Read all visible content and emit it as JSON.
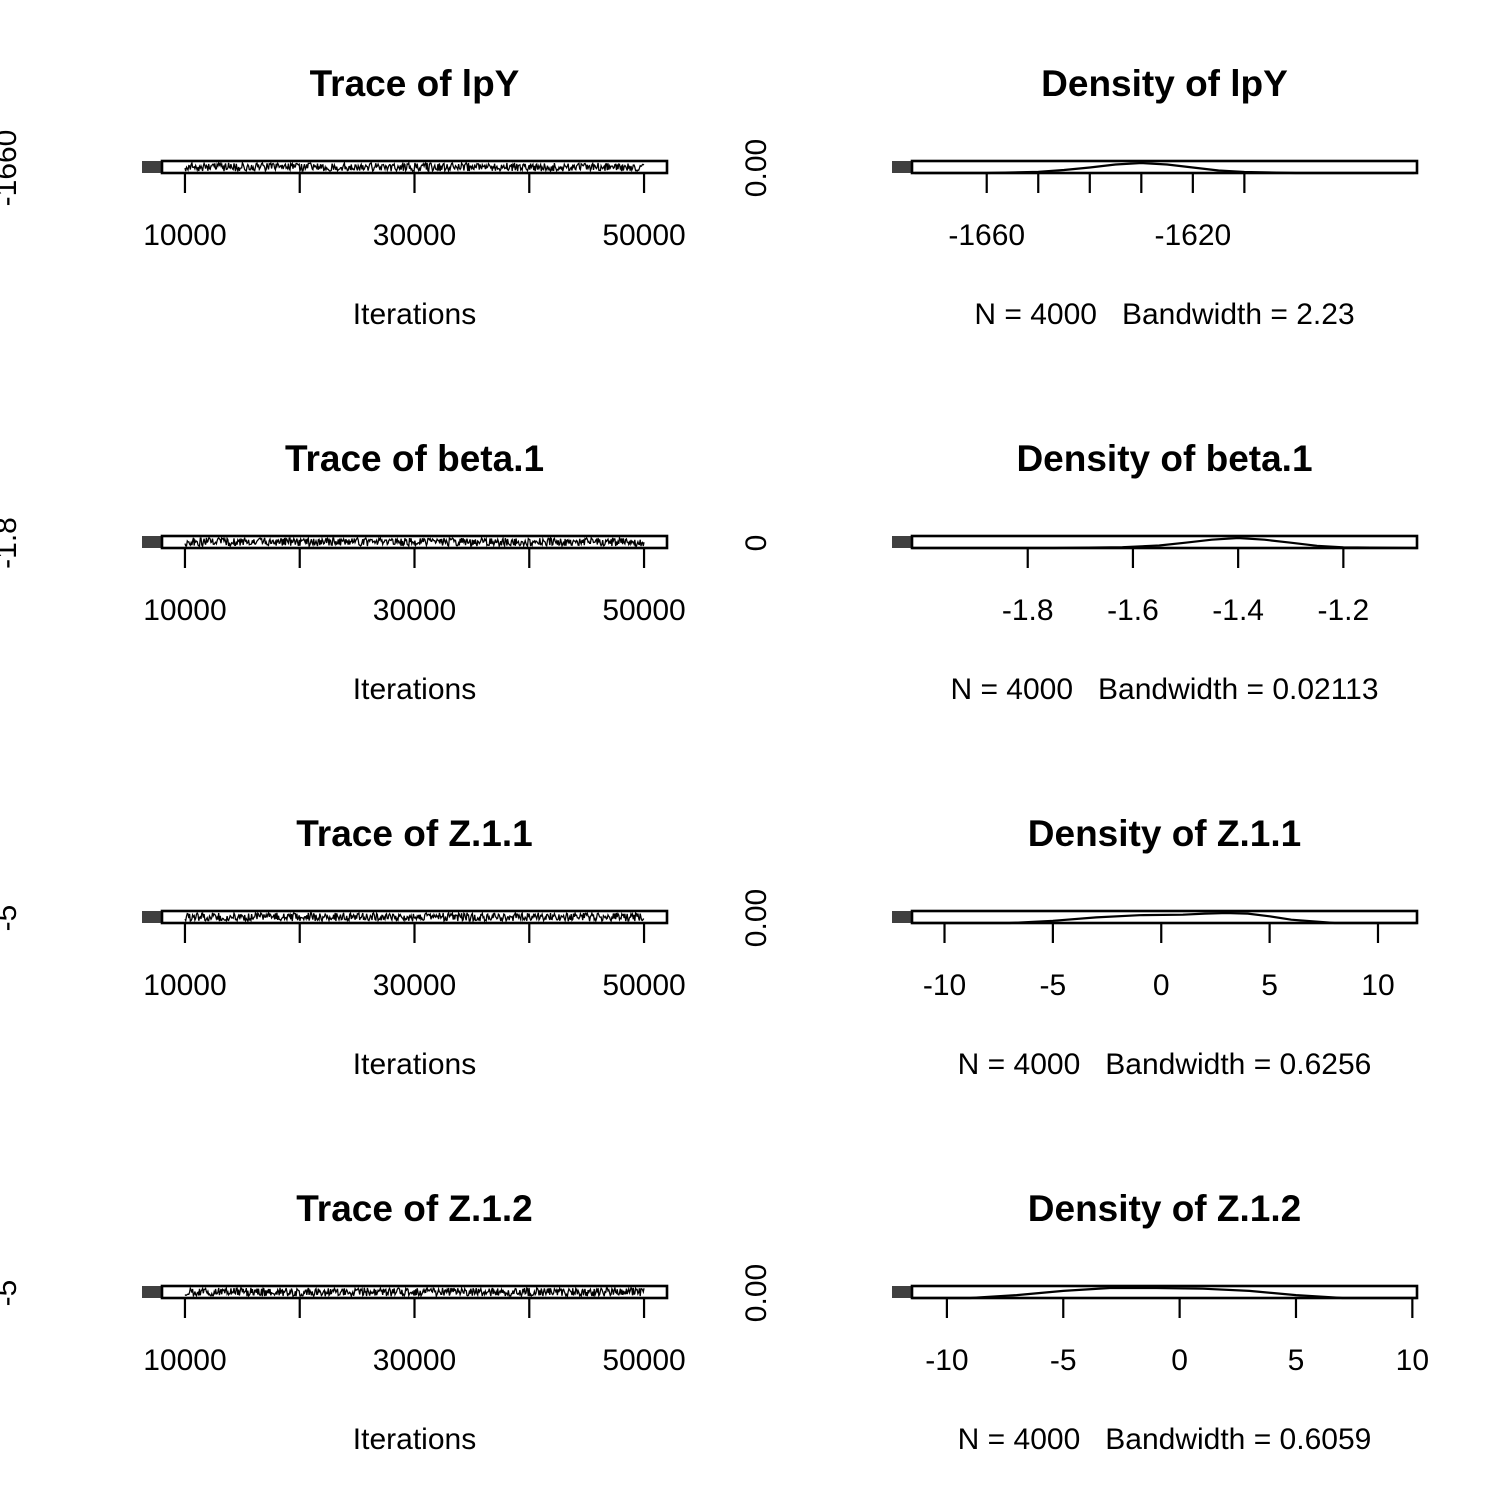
{
  "chart_data": [
    {
      "type": "line",
      "title": "Trace of lpY",
      "xlabel": "Iterations",
      "xticks": [
        10000,
        20000,
        30000,
        40000,
        50000
      ],
      "xtick_labels": [
        "10000",
        "30000",
        "50000"
      ],
      "ytick_labels": [
        "-1660"
      ],
      "xlim": [
        8000,
        52000
      ],
      "center": -1635,
      "spread": 10,
      "series": [
        {
          "n": 4000,
          "x_range": [
            10000,
            50000
          ]
        }
      ]
    },
    {
      "type": "area",
      "title": "Density of lpY",
      "xlabel": "N = 4000   Bandwidth = 2.23",
      "xticks": [
        -1660,
        -1650,
        -1640,
        -1630,
        -1620,
        -1610
      ],
      "xtick_labels": [
        "-1660",
        "-1620"
      ],
      "ytick_labels": [
        "0.00"
      ],
      "xlim": [
        -1674.5,
        -1576.5
      ],
      "density": {
        "x": [
          -1674,
          -1660,
          -1650,
          -1645,
          -1640,
          -1635,
          -1630,
          -1625,
          -1620,
          -1615,
          -1610,
          -1600,
          -1577
        ],
        "y": [
          0,
          0,
          0.005,
          0.012,
          0.022,
          0.034,
          0.04,
          0.034,
          0.022,
          0.01,
          0.004,
          0,
          0
        ],
        "ymax": 0.04
      }
    },
    {
      "type": "line",
      "title": "Trace of beta.1",
      "xlabel": "Iterations",
      "xticks": [
        10000,
        20000,
        30000,
        40000,
        50000
      ],
      "xtick_labels": [
        "10000",
        "30000",
        "50000"
      ],
      "ytick_labels": [
        "-1.8"
      ],
      "xlim": [
        8000,
        52000
      ],
      "center": -1.42,
      "spread": 0.1,
      "series": [
        {
          "n": 4000,
          "x_range": [
            10000,
            50000
          ]
        }
      ]
    },
    {
      "type": "area",
      "title": "Density of beta.1",
      "xlabel": "N = 4000   Bandwidth = 0.02113",
      "xticks": [
        -1.8,
        -1.6,
        -1.4,
        -1.2
      ],
      "xtick_labels": [
        "-1.8",
        "-1.6",
        "-1.4",
        "-1.2"
      ],
      "ytick_labels": [
        "0"
      ],
      "xlim": [
        -2.02,
        -1.06
      ],
      "density": {
        "x": [
          -2.02,
          -1.75,
          -1.62,
          -1.55,
          -1.5,
          -1.45,
          -1.4,
          -1.35,
          -1.3,
          -1.25,
          -1.2,
          -1.06
        ],
        "y": [
          0,
          0,
          0.3,
          0.9,
          1.9,
          3.0,
          3.6,
          3.0,
          1.9,
          0.8,
          0.2,
          0
        ],
        "ymax": 3.6
      }
    },
    {
      "type": "line",
      "title": "Trace of Z.1.1",
      "xlabel": "Iterations",
      "xticks": [
        10000,
        20000,
        30000,
        40000,
        50000
      ],
      "xtick_labels": [
        "10000",
        "30000",
        "50000"
      ],
      "ytick_labels": [
        "-5"
      ],
      "xlim": [
        8000,
        52000
      ],
      "center": 1.5,
      "spread": 3,
      "series": [
        {
          "n": 4000,
          "x_range": [
            10000,
            50000
          ]
        }
      ]
    },
    {
      "type": "area",
      "title": "Density of Z.1.1",
      "xlabel": "N = 4000   Bandwidth = 0.6256",
      "xticks": [
        -10,
        -5,
        0,
        5,
        10
      ],
      "xtick_labels": [
        "-10",
        "-5",
        "0",
        "5",
        "10"
      ],
      "ytick_labels": [
        "0.00"
      ],
      "xlim": [
        -11.5,
        11.8
      ],
      "density": {
        "x": [
          -11.5,
          -7,
          -5,
          -3,
          -1,
          1,
          2,
          3,
          4,
          5,
          6,
          8,
          11.8
        ],
        "y": [
          0,
          0,
          0.02,
          0.05,
          0.07,
          0.075,
          0.085,
          0.09,
          0.085,
          0.06,
          0.03,
          0,
          0
        ],
        "ymax": 0.09
      }
    },
    {
      "type": "line",
      "title": "Trace of Z.1.2",
      "xlabel": "Iterations",
      "xticks": [
        10000,
        20000,
        30000,
        40000,
        50000
      ],
      "xtick_labels": [
        "10000",
        "30000",
        "50000"
      ],
      "ytick_labels": [
        "-5"
      ],
      "xlim": [
        8000,
        52000
      ],
      "center": -1.5,
      "spread": 3.5,
      "series": [
        {
          "n": 4000,
          "x_range": [
            10000,
            50000
          ]
        }
      ]
    },
    {
      "type": "area",
      "title": "Density of Z.1.2",
      "xlabel": "N = 4000   Bandwidth = 0.6059",
      "xticks": [
        -10,
        -5,
        0,
        5,
        10
      ],
      "xtick_labels": [
        "-10",
        "-5",
        "0",
        "5",
        "10"
      ],
      "ytick_labels": [
        "0.00"
      ],
      "xlim": [
        -11.5,
        10.2
      ],
      "density": {
        "x": [
          -11.5,
          -9,
          -7,
          -5,
          -3,
          -1,
          1,
          3,
          5,
          7,
          10.2
        ],
        "y": [
          0,
          0,
          0.02,
          0.05,
          0.07,
          0.07,
          0.065,
          0.05,
          0.02,
          0,
          0
        ],
        "ymax": 0.07
      }
    }
  ]
}
